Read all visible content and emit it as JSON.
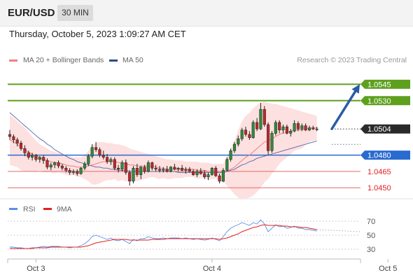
{
  "header": {
    "symbol": "EUR/USD",
    "timeframe": "30 MIN",
    "datetime": "Thursday, October 5, 2023 1:09:27 AM CET"
  },
  "legend": {
    "ma20_label": "MA 20 + Bollinger Bands",
    "ma50_label": "MA 50",
    "rsi_label": "RSI",
    "rsi_ma_label": "9MA",
    "credit": "Research © 2023 Trading Central"
  },
  "colors": {
    "ma20": "#f08080",
    "bollinger_fill": "#fde0e0",
    "ma50": "#5566aa",
    "up_candle": "#2e8b3a",
    "down_candle": "#c0282a",
    "target_line": "#5ea01e",
    "pivot_line": "#2a6bd0",
    "support_line": "#e36a6a",
    "arrow": "#2a5ba8",
    "rsi_line": "#5b8ee8",
    "rsi_ma": "#e02222"
  },
  "chart_data": {
    "type": "candlestick",
    "candles": [
      [
        1.0499,
        1.0503,
        1.0494,
        1.0497
      ],
      [
        1.0497,
        1.0499,
        1.0491,
        1.0494
      ],
      [
        1.0494,
        1.0496,
        1.0488,
        1.0491
      ],
      [
        1.0491,
        1.0493,
        1.0484,
        1.0486
      ],
      [
        1.0486,
        1.0489,
        1.0479,
        1.0482
      ],
      [
        1.0482,
        1.0484,
        1.0476,
        1.0478
      ],
      [
        1.0478,
        1.0482,
        1.0475,
        1.048
      ],
      [
        1.048,
        1.0481,
        1.0474,
        1.0476
      ],
      [
        1.0476,
        1.0479,
        1.0473,
        1.0478
      ],
      [
        1.0478,
        1.048,
        1.0472,
        1.0475
      ],
      [
        1.0475,
        1.0477,
        1.0467,
        1.0469
      ],
      [
        1.0469,
        1.0473,
        1.0466,
        1.0471
      ],
      [
        1.0471,
        1.0474,
        1.0468,
        1.0473
      ],
      [
        1.0473,
        1.0475,
        1.0468,
        1.047
      ],
      [
        1.047,
        1.0472,
        1.0466,
        1.0468
      ],
      [
        1.0468,
        1.047,
        1.0464,
        1.0466
      ],
      [
        1.0466,
        1.0468,
        1.0462,
        1.0464
      ],
      [
        1.0464,
        1.0467,
        1.0462,
        1.0465
      ],
      [
        1.0465,
        1.0467,
        1.0461,
        1.0463
      ],
      [
        1.0463,
        1.0469,
        1.0462,
        1.0468
      ],
      [
        1.0468,
        1.0474,
        1.0466,
        1.0472
      ],
      [
        1.0472,
        1.0481,
        1.047,
        1.0479
      ],
      [
        1.0479,
        1.049,
        1.0477,
        1.0487
      ],
      [
        1.0487,
        1.0492,
        1.0483,
        1.0485
      ],
      [
        1.0485,
        1.0487,
        1.0478,
        1.048
      ],
      [
        1.048,
        1.0484,
        1.0476,
        1.0478
      ],
      [
        1.0478,
        1.0481,
        1.0472,
        1.0474
      ],
      [
        1.0474,
        1.0478,
        1.0471,
        1.0476
      ],
      [
        1.0476,
        1.0478,
        1.0466,
        1.0468
      ],
      [
        1.0468,
        1.0471,
        1.0464,
        1.0467
      ],
      [
        1.0467,
        1.0475,
        1.0465,
        1.0473
      ],
      [
        1.0473,
        1.0476,
        1.0462,
        1.0464
      ],
      [
        1.0464,
        1.0466,
        1.0452,
        1.0456
      ],
      [
        1.0456,
        1.047,
        1.0454,
        1.0468
      ],
      [
        1.0468,
        1.0472,
        1.046,
        1.0462
      ],
      [
        1.0462,
        1.047,
        1.0458,
        1.0469
      ],
      [
        1.0469,
        1.0471,
        1.0463,
        1.0465
      ],
      [
        1.0465,
        1.0475,
        1.0464,
        1.0473
      ],
      [
        1.0473,
        1.0474,
        1.0466,
        1.0468
      ],
      [
        1.0468,
        1.0471,
        1.0465,
        1.0467
      ],
      [
        1.0467,
        1.047,
        1.0464,
        1.0466
      ],
      [
        1.0466,
        1.0469,
        1.0464,
        1.0467
      ],
      [
        1.0467,
        1.047,
        1.0464,
        1.0465
      ],
      [
        1.0465,
        1.047,
        1.0464,
        1.0469
      ],
      [
        1.0469,
        1.0472,
        1.0466,
        1.0467
      ],
      [
        1.0467,
        1.0469,
        1.0465,
        1.0468
      ],
      [
        1.0468,
        1.0471,
        1.0465,
        1.0466
      ],
      [
        1.0466,
        1.0469,
        1.0463,
        1.0467
      ],
      [
        1.0467,
        1.0469,
        1.0464,
        1.0465
      ],
      [
        1.0465,
        1.0467,
        1.0461,
        1.0462
      ],
      [
        1.0462,
        1.0467,
        1.046,
        1.0465
      ],
      [
        1.0465,
        1.0468,
        1.0462,
        1.0463
      ],
      [
        1.0463,
        1.0466,
        1.0458,
        1.046
      ],
      [
        1.046,
        1.0464,
        1.0457,
        1.0462
      ],
      [
        1.0462,
        1.0469,
        1.0461,
        1.0468
      ],
      [
        1.0468,
        1.047,
        1.046,
        1.0461
      ],
      [
        1.0461,
        1.0463,
        1.0454,
        1.0456
      ],
      [
        1.0456,
        1.0468,
        1.0455,
        1.0466
      ],
      [
        1.0466,
        1.0478,
        1.0465,
        1.0476
      ],
      [
        1.0476,
        1.0486,
        1.0474,
        1.0484
      ],
      [
        1.0484,
        1.0492,
        1.0482,
        1.049
      ],
      [
        1.049,
        1.0498,
        1.0488,
        1.0495
      ],
      [
        1.0495,
        1.0505,
        1.0493,
        1.0503
      ],
      [
        1.0503,
        1.0506,
        1.0497,
        1.0499
      ],
      [
        1.0499,
        1.0502,
        1.0494,
        1.0496
      ],
      [
        1.0496,
        1.0512,
        1.0495,
        1.051
      ],
      [
        1.051,
        1.0514,
        1.0502,
        1.0504
      ],
      [
        1.0504,
        1.0528,
        1.0503,
        1.0522
      ],
      [
        1.0522,
        1.0525,
        1.0506,
        1.0508
      ],
      [
        1.0508,
        1.051,
        1.048,
        1.0484
      ],
      [
        1.0484,
        1.0502,
        1.0482,
        1.05
      ],
      [
        1.05,
        1.0512,
        1.0498,
        1.051
      ],
      [
        1.051,
        1.0512,
        1.05,
        1.0503
      ],
      [
        1.0503,
        1.0508,
        1.05,
        1.0506
      ],
      [
        1.0506,
        1.0508,
        1.0499,
        1.05
      ],
      [
        1.05,
        1.0504,
        1.0497,
        1.0502
      ],
      [
        1.0502,
        1.0512,
        1.0501,
        1.0509
      ],
      [
        1.0509,
        1.0511,
        1.0502,
        1.0504
      ],
      [
        1.0504,
        1.0509,
        1.0502,
        1.0507
      ],
      [
        1.0507,
        1.0509,
        1.0502,
        1.0503
      ],
      [
        1.0503,
        1.0507,
        1.0502,
        1.0505
      ],
      [
        1.0505,
        1.0507,
        1.0503,
        1.0504
      ],
      [
        1.0504,
        1.0506,
        1.0502,
        1.0504
      ]
    ],
    "ma20": [
      1.0494,
      1.0492,
      1.049,
      1.0487,
      1.0485,
      1.0483,
      1.0481,
      1.0479,
      1.0478,
      1.0476,
      1.0475,
      1.0474,
      1.0473,
      1.0473,
      1.0472,
      1.0471,
      1.047,
      1.047,
      1.0469,
      1.0469,
      1.0469,
      1.047,
      1.0471,
      1.0472,
      1.0473,
      1.0474,
      1.0474,
      1.0474,
      1.0474,
      1.0473,
      1.0473,
      1.0472,
      1.0471,
      1.0471,
      1.047,
      1.047,
      1.047,
      1.047,
      1.047,
      1.0469,
      1.0468,
      1.0468,
      1.0467,
      1.0467,
      1.0467,
      1.0467,
      1.0467,
      1.0467,
      1.0467,
      1.0467,
      1.0466,
      1.0466,
      1.0466,
      1.0465,
      1.0465,
      1.0465,
      1.0464,
      1.0464,
      1.0465,
      1.0467,
      1.0469,
      1.0472,
      1.0475,
      1.0478,
      1.048,
      1.0483,
      1.0486,
      1.0489,
      1.0492,
      1.0493,
      1.0495,
      1.0497,
      1.0499,
      1.05,
      1.0501,
      1.0502,
      1.0503,
      1.0503,
      1.0503,
      1.0504,
      1.0505,
      1.0505,
      1.0505
    ],
    "bb_upper": [
      1.0517,
      1.0514,
      1.0511,
      1.0508,
      1.0505,
      1.0501,
      1.0497,
      1.0493,
      1.049,
      1.0488,
      1.0486,
      1.0484,
      1.0483,
      1.0482,
      1.0481,
      1.048,
      1.0479,
      1.0478,
      1.0478,
      1.0478,
      1.048,
      1.0484,
      1.0489,
      1.0491,
      1.0492,
      1.0492,
      1.0491,
      1.0491,
      1.049,
      1.049,
      1.0489,
      1.0488,
      1.0486,
      1.0485,
      1.0484,
      1.0483,
      1.0482,
      1.0481,
      1.048,
      1.0479,
      1.0478,
      1.0477,
      1.0476,
      1.0476,
      1.0475,
      1.0475,
      1.0475,
      1.0474,
      1.0474,
      1.0474,
      1.0474,
      1.0473,
      1.0473,
      1.0473,
      1.0472,
      1.0472,
      1.0472,
      1.0472,
      1.0478,
      1.0486,
      1.0494,
      1.0503,
      1.0511,
      1.0516,
      1.0519,
      1.0523,
      1.0526,
      1.0528,
      1.0529,
      1.0528,
      1.0527,
      1.0527,
      1.0526,
      1.0525,
      1.0524,
      1.0523,
      1.0522,
      1.0521,
      1.052,
      1.0519,
      1.0518,
      1.0517,
      1.0516
    ],
    "bb_lower": [
      1.0471,
      1.047,
      1.0469,
      1.0466,
      1.0465,
      1.0465,
      1.0465,
      1.0465,
      1.0466,
      1.0464,
      1.0464,
      1.0464,
      1.0463,
      1.0464,
      1.0463,
      1.0462,
      1.0461,
      1.0462,
      1.046,
      1.046,
      1.0458,
      1.0456,
      1.0453,
      1.0453,
      1.0454,
      1.0456,
      1.0457,
      1.0457,
      1.0458,
      1.0456,
      1.0457,
      1.0456,
      1.0456,
      1.0457,
      1.0456,
      1.0457,
      1.0458,
      1.0459,
      1.046,
      1.0459,
      1.0458,
      1.0459,
      1.0458,
      1.0458,
      1.0459,
      1.0459,
      1.0459,
      1.046,
      1.046,
      1.046,
      1.0458,
      1.0459,
      1.0459,
      1.0457,
      1.0458,
      1.0458,
      1.0456,
      1.0456,
      1.0452,
      1.0448,
      1.0444,
      1.0441,
      1.0439,
      1.044,
      1.0441,
      1.0443,
      1.0446,
      1.045,
      1.0455,
      1.0458,
      1.0463,
      1.0467,
      1.0472,
      1.0475,
      1.0478,
      1.0481,
      1.0484,
      1.0485,
      1.0486,
      1.0489,
      1.0492,
      1.0493,
      1.0494
    ],
    "ma50": [
      1.0519,
      1.0516,
      1.0513,
      1.051,
      1.0507,
      1.0504,
      1.0501,
      1.0498,
      1.0495,
      1.0493,
      1.049,
      1.0488,
      1.0485,
      1.0483,
      1.0481,
      1.0479,
      1.0477,
      1.0476,
      1.0474,
      1.0473,
      1.0472,
      1.0471,
      1.047,
      1.0469,
      1.0469,
      1.0468,
      1.0468,
      1.0467,
      1.0467,
      1.0466,
      1.0466,
      1.0466,
      1.0465,
      1.0465,
      1.0465,
      1.0465,
      1.0465,
      1.0465,
      1.0465,
      1.0465,
      1.0465,
      1.0465,
      1.0465,
      1.0465,
      1.0465,
      1.0464,
      1.0464,
      1.0464,
      1.0464,
      1.0464,
      1.0464,
      1.0464,
      1.0464,
      1.0464,
      1.0464,
      1.0464,
      1.0464,
      1.0464,
      1.0465,
      1.0466,
      1.0467,
      1.0469,
      1.0471,
      1.0472,
      1.0474,
      1.0475,
      1.0477,
      1.0478,
      1.0479,
      1.048,
      1.0481,
      1.0482,
      1.0483,
      1.0484,
      1.0485,
      1.0486,
      1.0487,
      1.0488,
      1.0489,
      1.049,
      1.0491,
      1.0492,
      1.0493
    ],
    "rsi": [
      33,
      33,
      32,
      32,
      31,
      31,
      32,
      32,
      33,
      34,
      33,
      34,
      34,
      34,
      33,
      33,
      32,
      33,
      33,
      35,
      38,
      42,
      48,
      50,
      48,
      46,
      44,
      46,
      43,
      42,
      44,
      41,
      38,
      44,
      42,
      45,
      45,
      48,
      46,
      45,
      45,
      46,
      45,
      46,
      46,
      46,
      45,
      46,
      45,
      44,
      45,
      44,
      43,
      44,
      46,
      44,
      42,
      48,
      55,
      60,
      63,
      65,
      68,
      66,
      64,
      68,
      66,
      72,
      66,
      55,
      60,
      65,
      62,
      63,
      60,
      61,
      63,
      60,
      60,
      58,
      58,
      57,
      56
    ],
    "rsi_ma": [
      31,
      31,
      31,
      31,
      31,
      31,
      31,
      32,
      32,
      32,
      32,
      33,
      33,
      33,
      33,
      33,
      33,
      33,
      33,
      33,
      34,
      35,
      37,
      39,
      40,
      41,
      42,
      43,
      44,
      44,
      44,
      44,
      43,
      43,
      43,
      43,
      43,
      43,
      44,
      44,
      44,
      44,
      45,
      45,
      45,
      45,
      45,
      45,
      45,
      45,
      45,
      45,
      45,
      45,
      45,
      45,
      44,
      45,
      46,
      48,
      50,
      52,
      55,
      57,
      59,
      61,
      62,
      64,
      65,
      64,
      64,
      64,
      64,
      63,
      63,
      62,
      62,
      62,
      61,
      61,
      60,
      59,
      58
    ],
    "levels": [
      {
        "value": 1.0545,
        "label": "1.0545",
        "role": "target"
      },
      {
        "value": 1.053,
        "label": "1.0530",
        "role": "target"
      },
      {
        "value": 1.0504,
        "label": "1.0504",
        "role": "last"
      },
      {
        "value": 1.048,
        "label": "1.0480",
        "role": "pivot"
      },
      {
        "value": 1.0465,
        "label": "1.0465",
        "role": "support"
      },
      {
        "value": 1.045,
        "label": "1.0450",
        "role": "support"
      }
    ],
    "forecast_arrow": {
      "from": 1.0504,
      "to": 1.0545
    },
    "rsi_ticks": [
      "70",
      "50",
      "30"
    ],
    "x_labels": [
      {
        "label": "Oct 3",
        "index": 7
      },
      {
        "label": "Oct 4",
        "index": 54
      },
      {
        "label": "Oct 5",
        "index": 101
      }
    ],
    "ylim": [
      1.0445,
      1.0553
    ],
    "rsi_ylim": [
      20,
      80
    ],
    "grid": false
  }
}
